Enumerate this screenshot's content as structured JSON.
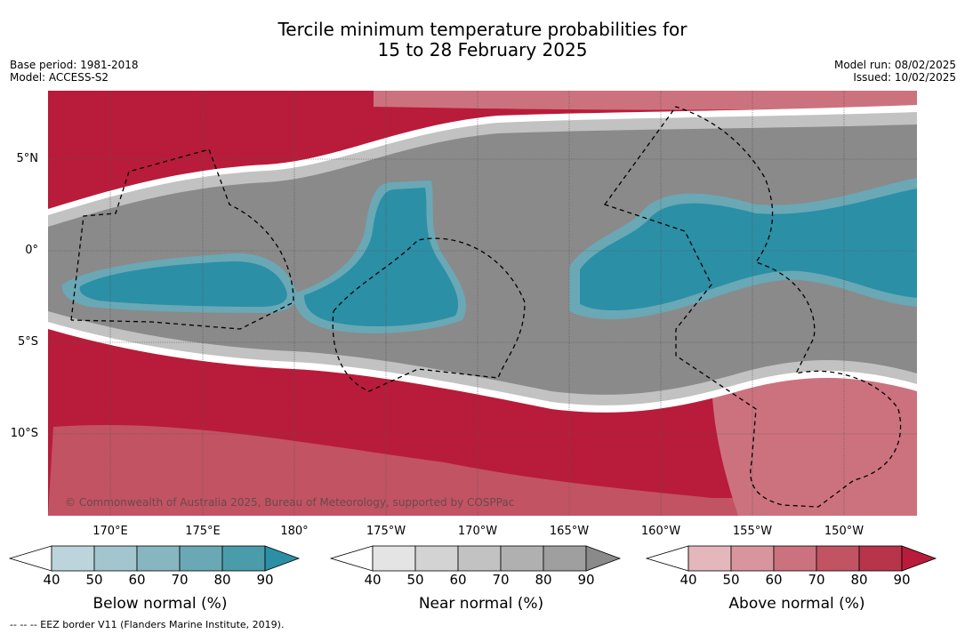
{
  "title": {
    "line1": "Tercile minimum temperature probabilities for",
    "line2": "15 to 28 February 2025"
  },
  "meta_left": {
    "base_period": "Base period: 1981-2018",
    "model": "Model: ACCESS-S2"
  },
  "meta_right": {
    "model_run": "Model run: 08/02/2025",
    "issued": "Issued: 10/02/2025"
  },
  "map": {
    "lat_labels": [
      "5°N",
      "0°",
      "5°S",
      "10°S"
    ],
    "lon_labels": [
      "170°E",
      "175°E",
      "180°",
      "175°W",
      "170°W",
      "165°W",
      "160°W",
      "155°W",
      "150°W"
    ],
    "copyright": "© Commonwealth of Australia 2025, Bureau of Meteorology, supported by COSPPac",
    "colors": {
      "below": "#2b8fa6",
      "near": "#8a8a8a",
      "above": "#b81c3a"
    }
  },
  "colorbars": [
    {
      "label": "Below normal (%)",
      "ticks": [
        "40",
        "50",
        "60",
        "70",
        "80",
        "90"
      ],
      "colors": [
        "#ffffff",
        "#bcd4db",
        "#a3c5cd",
        "#87b5c0",
        "#6aa8b5",
        "#4a9cab",
        "#2b8fa6"
      ]
    },
    {
      "label": "Near normal (%)",
      "ticks": [
        "40",
        "50",
        "60",
        "70",
        "80",
        "90"
      ],
      "colors": [
        "#ffffff",
        "#e4e4e4",
        "#d3d3d3",
        "#c2c2c2",
        "#b0b0b0",
        "#9f9f9f",
        "#8a8a8a"
      ]
    },
    {
      "label": "Above normal (%)",
      "ticks": [
        "40",
        "50",
        "60",
        "70",
        "80",
        "90"
      ],
      "colors": [
        "#ffffff",
        "#e3b7bc",
        "#d8959d",
        "#cc727e",
        "#c25363",
        "#b8344a",
        "#b81c3a"
      ]
    }
  ],
  "footer": "-- -- -- EEZ border V11 (Flanders Marine Institute, 2019)."
}
